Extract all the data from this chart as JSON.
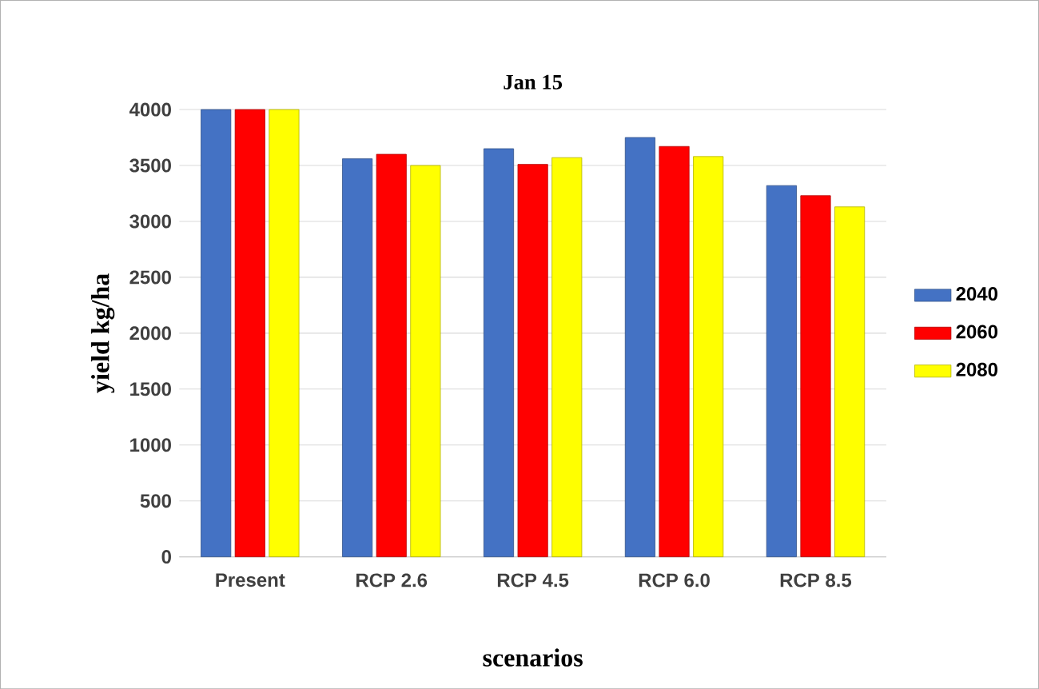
{
  "chart_data": {
    "type": "bar",
    "title": "Jan 15",
    "xlabel": "scenarios",
    "ylabel": "yield kg/ha",
    "categories": [
      "Present",
      "RCP 2.6",
      "RCP 4.5",
      "RCP 6.0",
      "RCP 8.5"
    ],
    "series": [
      {
        "name": "2040",
        "color": "#4472c4",
        "values": [
          4000,
          3560,
          3650,
          3750,
          3320
        ]
      },
      {
        "name": "2060",
        "color": "#ff0000",
        "values": [
          4000,
          3600,
          3510,
          3670,
          3230
        ]
      },
      {
        "name": "2080",
        "color": "#ffff00",
        "values": [
          4000,
          3500,
          3570,
          3580,
          3130
        ]
      }
    ],
    "ylim": [
      0,
      4000
    ],
    "yticks": [
      0,
      500,
      1000,
      1500,
      2000,
      2500,
      3000,
      3500,
      4000
    ],
    "grid": "y",
    "legend": "right"
  }
}
